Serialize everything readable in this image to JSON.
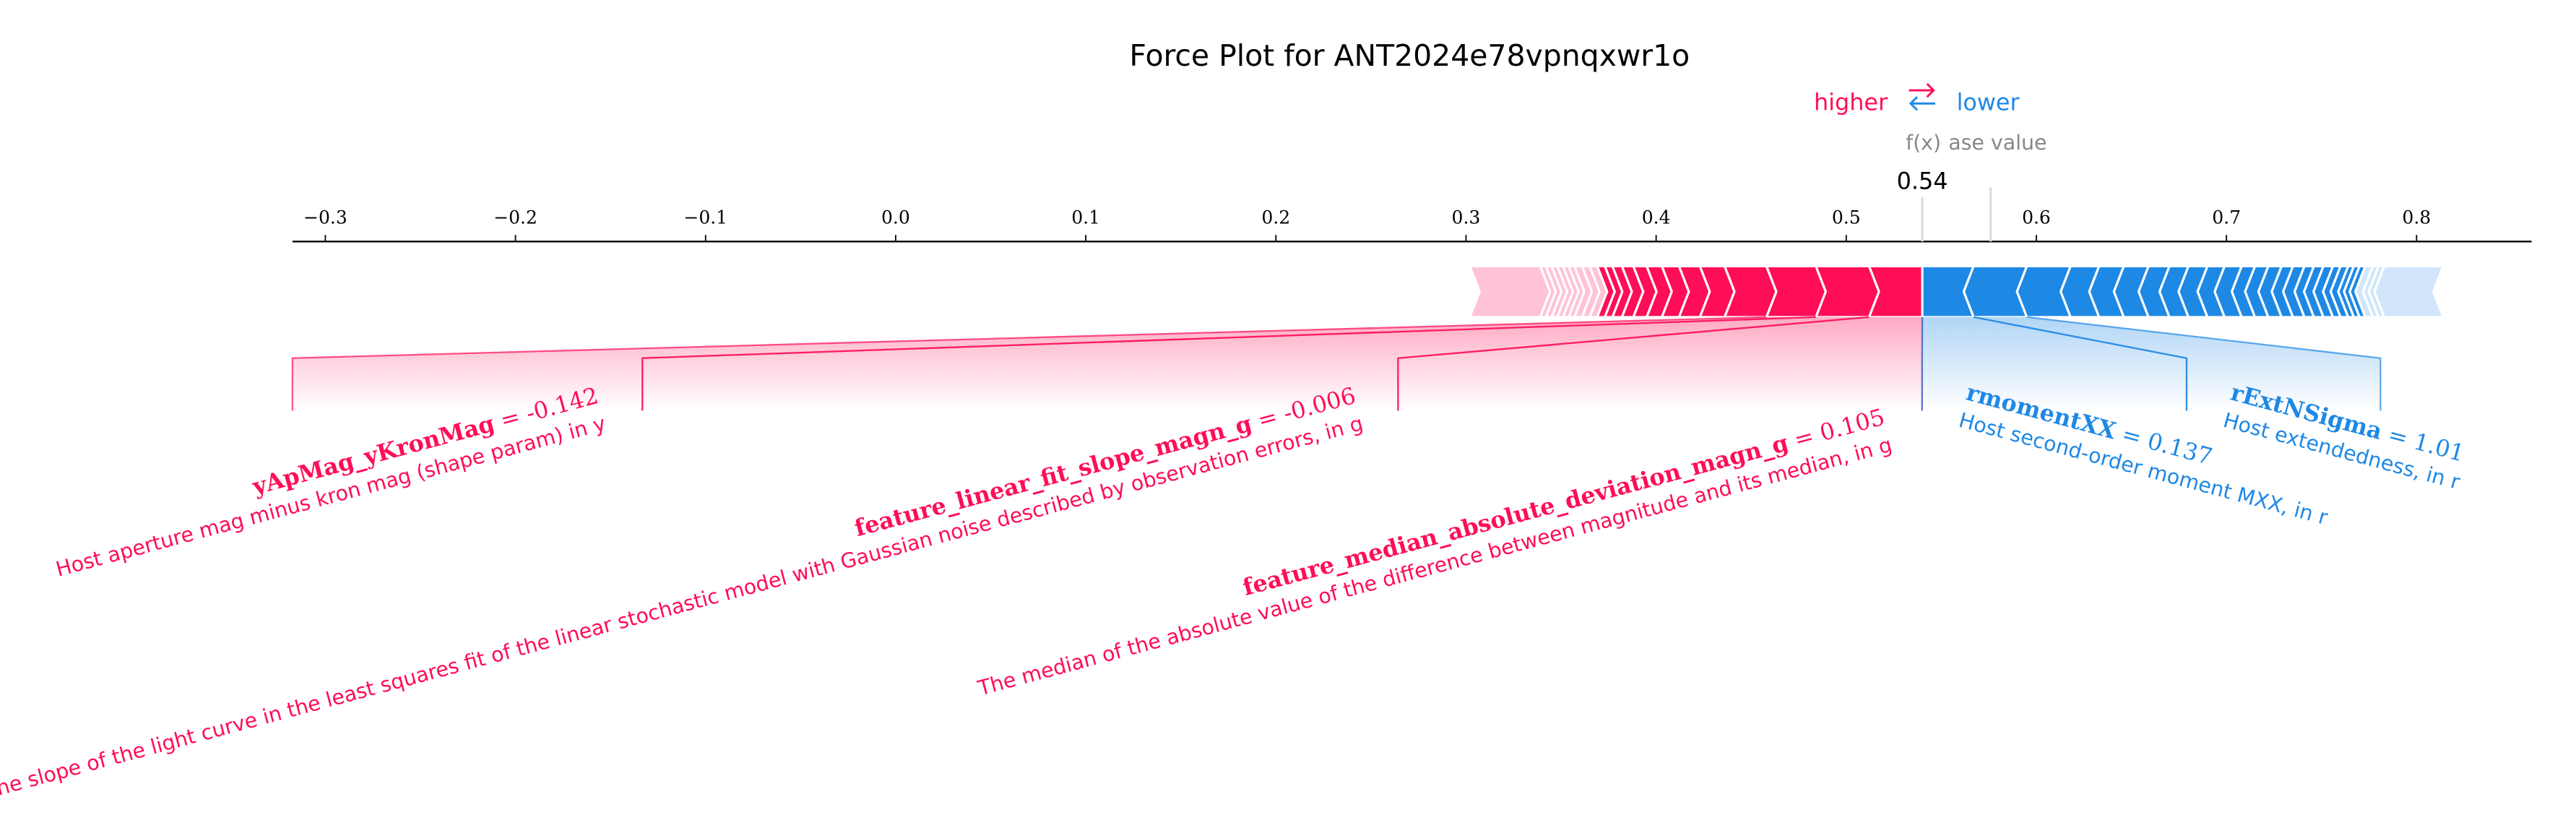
{
  "chart_data": {
    "type": "force",
    "title": "Force Plot for ANT2024e78vpnqxwr1o",
    "higher_label": "higher",
    "lower_label": "lower",
    "fx_label": "f(x)",
    "base_label": "ase value",
    "equals": "=",
    "output_value": 0.54,
    "base_value": 0.576,
    "xlim": [
      -0.3173,
      0.8605
    ],
    "xticks": [
      {
        "value": -0.3,
        "label": "−0.3"
      },
      {
        "value": -0.2,
        "label": "−0.2"
      },
      {
        "value": -0.1,
        "label": "−0.1"
      },
      {
        "value": 0,
        "label": "0.0"
      },
      0.1,
      0.2,
      0.3,
      0.4,
      0.5,
      0.6,
      0.7,
      0.8
    ],
    "higher": {
      "color": "#ff0d57",
      "faded_color": "#ffc3d5",
      "values": [
        0.028,
        0.028,
        0.026,
        0.022,
        0.013,
        0.011,
        0.009,
        0.008,
        0.007,
        0.006,
        0.005,
        0.004,
        0.004
      ],
      "names": [
        "feature_median_absolute_deviation_magn_g",
        "feature_linear_fit_slope_magn_g",
        "yApMag_yKronMag",
        null,
        null,
        null,
        null,
        null,
        null,
        null,
        null,
        null,
        null
      ],
      "feature_values": [
        0.105,
        -0.006,
        -0.142,
        null,
        null,
        null,
        null,
        null,
        null,
        null,
        null,
        null,
        null
      ],
      "descriptions": [
        "The median of the absolute value of the difference between magnitude and its median, in g",
        "The slope of the light curve in the least squares fit of the linear stochastic model with Gaussian noise described by observation errors, in g",
        "Host aperture mag minus kron mag (shape param) in y",
        null,
        null,
        null,
        null,
        null,
        null,
        null,
        null,
        null,
        null
      ],
      "faded_values": [
        0.004,
        0.004,
        0.004,
        0.003,
        0.003,
        0.003,
        0.003,
        0.003,
        0.003,
        0.037
      ]
    },
    "lower": {
      "color": "#1e88e5",
      "faded_color": "#d1e6fa",
      "values": [
        0.027,
        0.028,
        0.023,
        0.015,
        0.013,
        0.013,
        0.011,
        0.01,
        0.01,
        0.009,
        0.009,
        0.007,
        0.007,
        0.007,
        0.006,
        0.006,
        0.005,
        0.005,
        0.005,
        0.004,
        0.004,
        0.003,
        0.003,
        0.003
      ],
      "names": [
        "rmomentXX",
        "rExtNSigma",
        null,
        null,
        null,
        null,
        null,
        null,
        null,
        null,
        null,
        null,
        null,
        null,
        null,
        null,
        null,
        null,
        null,
        null,
        null,
        null,
        null,
        null
      ],
      "feature_values": [
        0.137,
        1.01,
        null,
        null,
        null,
        null,
        null,
        null,
        null,
        null,
        null,
        null,
        null,
        null,
        null,
        null,
        null,
        null,
        null,
        null,
        null,
        null,
        null,
        null
      ],
      "descriptions": [
        "Host second-order moment MXX, in r",
        "Host extendedness, in r",
        null,
        null,
        null,
        null,
        null,
        null,
        null,
        null,
        null,
        null,
        null,
        null,
        null,
        null,
        null,
        null,
        null,
        null,
        null,
        null,
        null,
        null
      ],
      "faded_values": [
        0.004,
        0.003,
        0.003,
        0.031
      ]
    }
  }
}
